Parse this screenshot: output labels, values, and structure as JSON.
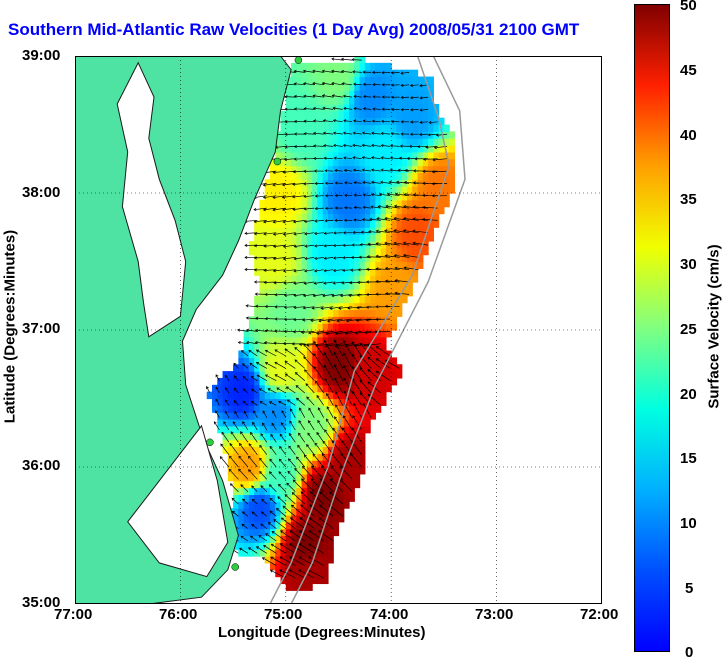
{
  "title": "Southern Mid-Atlantic Raw Velocities (1 Day Avg) 2008/05/31 2100 GMT",
  "chart_data": {
    "type": "heatmap",
    "title": "Southern Mid-Atlantic Raw Velocities (1 Day Avg) 2008/05/31 2100 GMT",
    "xlabel": "Longitude (Degrees:Minutes)",
    "ylabel": "Latitude (Degrees:Minutes)",
    "colorbar_label": "Surface Velocity (cm/s)",
    "x_ticks": [
      "77:00",
      "76:00",
      "75:00",
      "74:00",
      "73:00",
      "72:00"
    ],
    "y_ticks": [
      "39:00",
      "38:00",
      "37:00",
      "36:00",
      "35:00"
    ],
    "colorbar_ticks": [
      "0",
      "5",
      "10",
      "15",
      "20",
      "25",
      "30",
      "35",
      "40",
      "45",
      "50"
    ],
    "xlim": [
      -77.0,
      -72.0
    ],
    "ylim": [
      35.0,
      39.0
    ],
    "clim": [
      0,
      50
    ],
    "grid": true,
    "colormap": "jet",
    "land_color": "#4fe3a3",
    "coast_line_color": "#1a1a1a",
    "bathymetry_color": "#9a9a9a",
    "station_color": "#2ecc40",
    "title_color": "#0000ff",
    "stations": [
      {
        "lon": -74.88,
        "lat": 38.97
      },
      {
        "lon": -75.08,
        "lat": 38.23
      },
      {
        "lon": -75.72,
        "lat": 36.18
      },
      {
        "lon": -75.48,
        "lat": 35.27
      }
    ],
    "velocity_zones": [
      {
        "lon": -74.5,
        "lat": 38.85,
        "speed": 25
      },
      {
        "lon": -74.2,
        "lat": 38.7,
        "speed": 13
      },
      {
        "lon": -73.8,
        "lat": 38.55,
        "speed": 14
      },
      {
        "lon": -74.85,
        "lat": 38.45,
        "speed": 22
      },
      {
        "lon": -74.05,
        "lat": 38.3,
        "speed": 18
      },
      {
        "lon": -73.55,
        "lat": 38.05,
        "speed": 38
      },
      {
        "lon": -75.05,
        "lat": 38.0,
        "speed": 32
      },
      {
        "lon": -74.4,
        "lat": 37.95,
        "speed": 12
      },
      {
        "lon": -73.75,
        "lat": 37.7,
        "speed": 40
      },
      {
        "lon": -75.1,
        "lat": 37.5,
        "speed": 30
      },
      {
        "lon": -74.55,
        "lat": 37.55,
        "speed": 18
      },
      {
        "lon": -73.95,
        "lat": 37.3,
        "speed": 36
      },
      {
        "lon": -74.95,
        "lat": 37.15,
        "speed": 24
      },
      {
        "lon": -74.5,
        "lat": 36.75,
        "speed": 50
      },
      {
        "lon": -74.2,
        "lat": 36.7,
        "speed": 46
      },
      {
        "lon": -75.05,
        "lat": 36.7,
        "speed": 30
      },
      {
        "lon": -75.4,
        "lat": 36.55,
        "speed": 8
      },
      {
        "lon": -75.1,
        "lat": 36.4,
        "speed": 13
      },
      {
        "lon": -74.75,
        "lat": 36.3,
        "speed": 25
      },
      {
        "lon": -75.35,
        "lat": 36.0,
        "speed": 36
      },
      {
        "lon": -75.05,
        "lat": 35.95,
        "speed": 22
      },
      {
        "lon": -74.65,
        "lat": 35.8,
        "speed": 50
      },
      {
        "lon": -74.4,
        "lat": 36.05,
        "speed": 48
      },
      {
        "lon": -75.25,
        "lat": 35.7,
        "speed": 10
      },
      {
        "lon": -74.8,
        "lat": 35.45,
        "speed": 50
      },
      {
        "lon": -74.75,
        "lat": 35.25,
        "speed": 48
      }
    ]
  }
}
